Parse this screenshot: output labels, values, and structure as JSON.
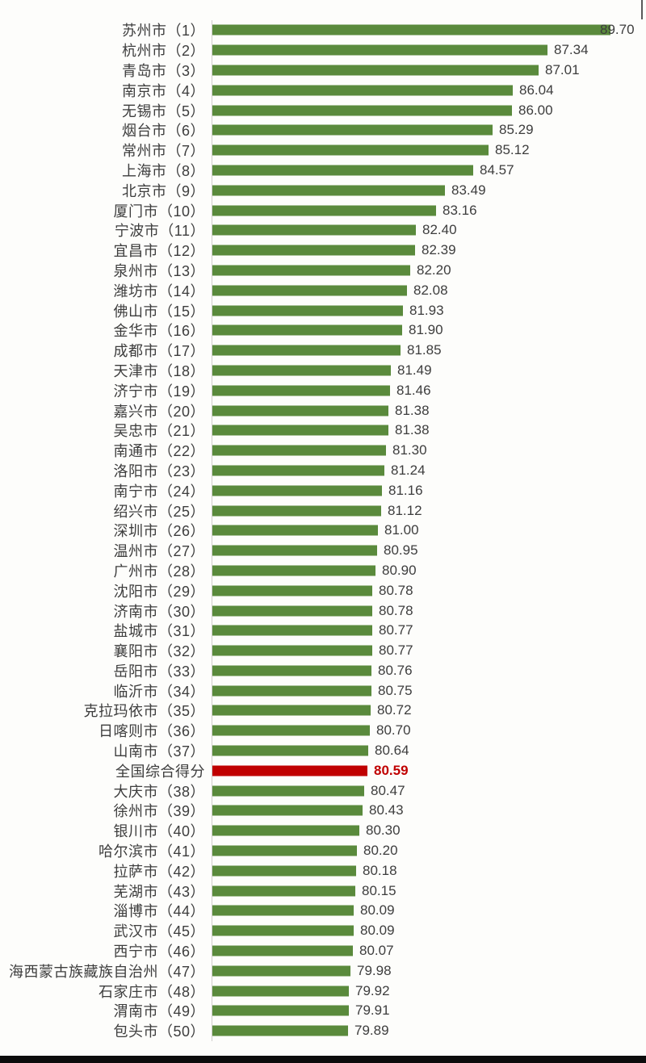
{
  "chart_data": {
    "type": "bar",
    "orientation": "horizontal",
    "title": "",
    "xlabel": "",
    "ylabel": "",
    "xlim": [
      74.8,
      90
    ],
    "grid": false,
    "legend": "none",
    "bar_color": "#5a8a3c",
    "highlight_color": "#c00000",
    "label_color": "#3d3d3d",
    "value_color": "#3d3d3d",
    "highlight_index": 37,
    "highlight_category": "全国综合得分",
    "categories": [
      "苏州市（1）",
      "杭州市（2）",
      "青岛市（3）",
      "南京市（4）",
      "无锡市（5）",
      "烟台市（6）",
      "常州市（7）",
      "上海市（8）",
      "北京市（9）",
      "厦门市（10）",
      "宁波市（11）",
      "宜昌市（12）",
      "泉州市（13）",
      "潍坊市（14）",
      "佛山市（15）",
      "金华市（16）",
      "成都市（17）",
      "天津市（18）",
      "济宁市（19）",
      "嘉兴市（20）",
      "吴忠市（21）",
      "南通市（22）",
      "洛阳市（23）",
      "南宁市（24）",
      "绍兴市（25）",
      "深圳市（26）",
      "温州市（27）",
      "广州市（28）",
      "沈阳市（29）",
      "济南市（30）",
      "盐城市（31）",
      "襄阳市（32）",
      "岳阳市（33）",
      "临沂市（34）",
      "克拉玛依市（35）",
      "日喀则市（36）",
      "山南市（37）",
      "全国综合得分",
      "大庆市（38）",
      "徐州市（39）",
      "银川市（40）",
      "哈尔滨市（41）",
      "拉萨市（42）",
      "芜湖市（43）",
      "淄博市（44）",
      "武汉市（45）",
      "西宁市（46）",
      "海西蒙古族藏族自治州（47）",
      "石家庄市（48）",
      "渭南市（49）",
      "包头市（50）"
    ],
    "values": [
      89.7,
      87.34,
      87.01,
      86.04,
      86.0,
      85.29,
      85.12,
      84.57,
      83.49,
      83.16,
      82.4,
      82.39,
      82.2,
      82.08,
      81.93,
      81.9,
      81.85,
      81.49,
      81.46,
      81.38,
      81.38,
      81.3,
      81.24,
      81.16,
      81.12,
      81.0,
      80.95,
      80.9,
      80.78,
      80.78,
      80.77,
      80.77,
      80.76,
      80.75,
      80.72,
      80.7,
      80.64,
      80.59,
      80.47,
      80.43,
      80.3,
      80.2,
      80.18,
      80.15,
      80.09,
      80.09,
      80.07,
      79.98,
      79.92,
      79.91,
      79.89
    ],
    "value_decimals": 2
  }
}
